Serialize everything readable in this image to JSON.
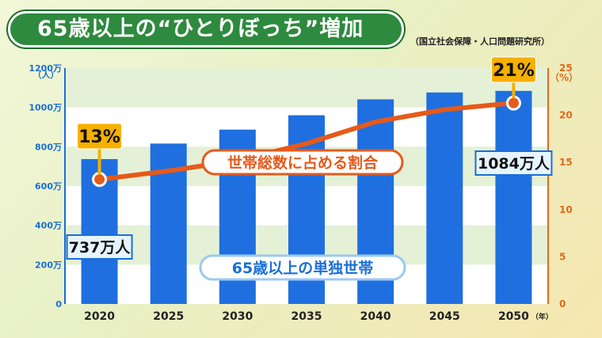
{
  "title": "65歳以上の“ひとりぼっち”増加",
  "source": "（国立社会保障・人口問題研究所）",
  "colors": {
    "bar": "#1f6fe0",
    "line": "#e65a1a",
    "title_bg": "#2d8a3e",
    "callout": "#f5b000"
  },
  "chart_data": {
    "type": "bar",
    "categories": [
      "2020",
      "2025",
      "2030",
      "2035",
      "2040",
      "2045",
      "2050"
    ],
    "x_unit": "（年）",
    "series": [
      {
        "name": "65歳以上の単独世帯",
        "axis": "left",
        "type": "bar",
        "values": [
          737,
          816,
          887,
          960,
          1041,
          1076,
          1084
        ]
      },
      {
        "name": "世帯総数に占める割合",
        "axis": "right",
        "type": "line",
        "values": [
          13.2,
          14.1,
          15.2,
          17.0,
          19.3,
          20.6,
          21.3
        ]
      }
    ],
    "y_left": {
      "ticks": [
        "0",
        "200万",
        "400万",
        "600万",
        "800万",
        "1000万",
        "1200万"
      ],
      "unit": "（人）",
      "lim": [
        0,
        1200
      ]
    },
    "y_right": {
      "ticks": [
        "0",
        "5",
        "10",
        "15",
        "20",
        "25"
      ],
      "unit": "（%）",
      "lim": [
        0,
        25
      ]
    },
    "annotations": [
      {
        "text": "13%",
        "series": "line",
        "index": 0
      },
      {
        "text": "21%",
        "series": "line",
        "index": 6
      },
      {
        "text": "737万人",
        "series": "bar",
        "index": 0
      },
      {
        "text": "1084万人",
        "series": "bar",
        "index": 6
      }
    ]
  }
}
